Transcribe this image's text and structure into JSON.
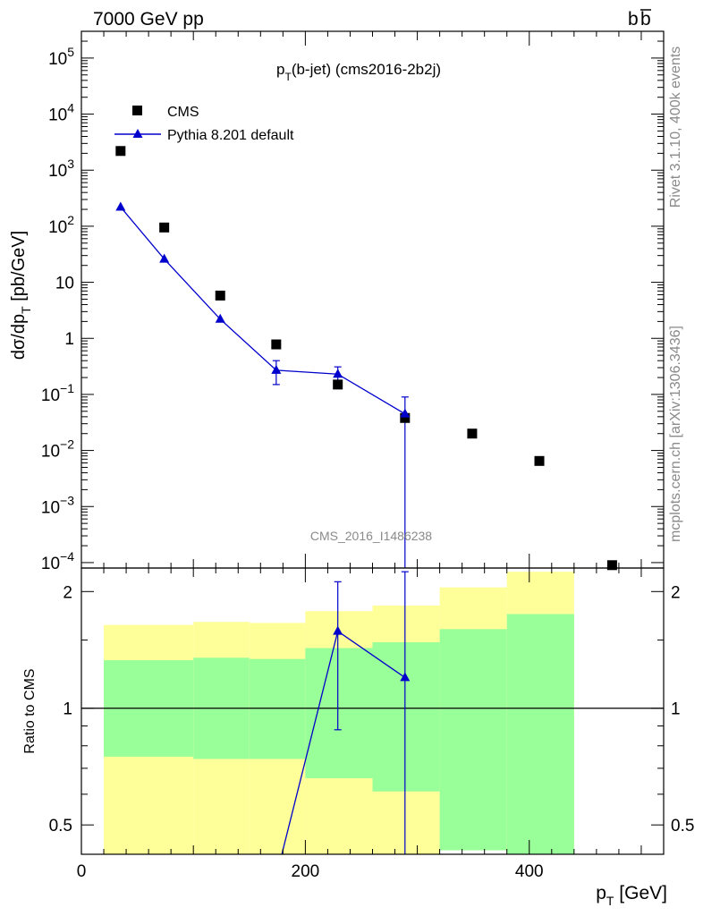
{
  "header": {
    "left": "7000 GeV pp",
    "right_b": "b",
    "right_bbar": "b"
  },
  "side_text": {
    "top": "Rivet 3.1.10,  400k events",
    "bottom": "mcplots.cern.ch [arXiv:1306.3436]"
  },
  "watermark": "CMS_2016_I1486238",
  "colors": {
    "mc": "#0000cc",
    "data": "#000000",
    "band_outer": "#ffff99",
    "band_inner": "#99ff99",
    "side_text": "#8a8a8a"
  },
  "chart_data": [
    {
      "type": "scatter",
      "title_main": "p",
      "title_sub": "T",
      "title_rest": "(b-jet) (cms2016-2b2j)",
      "ylabel_parts": [
        "dσ/dp",
        "T",
        " [pb/GeV]"
      ],
      "yscale": "log",
      "xlim": [
        0,
        520
      ],
      "ylim": [
        8e-05,
        300000.0
      ],
      "legend_placement": "top-left",
      "y_ticks": [
        {
          "v": 100000.0,
          "base": "10",
          "exp": "5"
        },
        {
          "v": 10000.0,
          "base": "10",
          "exp": "4"
        },
        {
          "v": 1000.0,
          "base": "10",
          "exp": "3"
        },
        {
          "v": 100.0,
          "base": "10",
          "exp": "2"
        },
        {
          "v": 10,
          "base": "10",
          "exp": ""
        },
        {
          "v": 1,
          "base": "1",
          "exp": ""
        },
        {
          "v": 0.1,
          "base": "10",
          "exp": "−1"
        },
        {
          "v": 0.01,
          "base": "10",
          "exp": "−2"
        },
        {
          "v": 0.001,
          "base": "10",
          "exp": "−3"
        },
        {
          "v": 0.0001,
          "base": "10",
          "exp": "−4"
        }
      ],
      "series": [
        {
          "name": "CMS",
          "marker": "square",
          "x": [
            35,
            74,
            124,
            174,
            229,
            289,
            349,
            409,
            474
          ],
          "y": [
            2200,
            95,
            5.8,
            0.78,
            0.15,
            0.038,
            0.02,
            0.0065,
            9e-05
          ]
        },
        {
          "name": "Pythia 8.201 default",
          "marker": "triangle",
          "x": [
            35,
            74,
            124,
            174,
            229,
            289
          ],
          "y": [
            220,
            26,
            2.2,
            0.27,
            0.23,
            0.045
          ],
          "yerr_low": [
            null,
            null,
            null,
            0.15,
            0.16,
            1e-05
          ],
          "yerr_high": [
            null,
            null,
            null,
            0.4,
            0.31,
            0.09
          ]
        }
      ]
    },
    {
      "type": "line",
      "ylabel": "Ratio to CMS",
      "xlabel_main": "p",
      "xlabel_sub": "T",
      "xlabel_rest": " [GeV]",
      "yscale": "log",
      "xlim": [
        0,
        520
      ],
      "ylim": [
        0.42,
        2.3
      ],
      "x_ticks": [
        0,
        200,
        400
      ],
      "y_ticks": [
        0.5,
        1,
        2
      ],
      "reference_line": 1,
      "bands": [
        {
          "x0": 20,
          "x1": 100,
          "outer": [
            0.39,
            1.64
          ],
          "inner": [
            0.75,
            1.33
          ]
        },
        {
          "x0": 100,
          "x1": 150,
          "outer": [
            0.38,
            1.67
          ],
          "inner": [
            0.74,
            1.35
          ]
        },
        {
          "x0": 150,
          "x1": 200,
          "outer": [
            0.38,
            1.66
          ],
          "inner": [
            0.74,
            1.34
          ]
        },
        {
          "x0": 200,
          "x1": 260,
          "outer": [
            0.39,
            1.78
          ],
          "inner": [
            0.66,
            1.43
          ]
        },
        {
          "x0": 260,
          "x1": 320,
          "outer": [
            0.39,
            1.84
          ],
          "inner": [
            0.61,
            1.48
          ]
        },
        {
          "x0": 320,
          "x1": 380,
          "outer": [
            0.43,
            2.05
          ],
          "inner": [
            0.43,
            1.6
          ]
        },
        {
          "x0": 380,
          "x1": 440,
          "outer": [
            0.42,
            2.25
          ],
          "inner": [
            0.42,
            1.75
          ]
        }
      ],
      "series": [
        {
          "name": "Pythia 8.201 default",
          "marker": "triangle",
          "x": [
            179,
            229,
            289
          ],
          "y": [
            0.42,
            1.58,
            1.2
          ],
          "show_marker": [
            false,
            true,
            true
          ],
          "yerr_low": [
            null,
            0.88,
            0.42
          ],
          "yerr_high": [
            null,
            2.12,
            2.25
          ]
        }
      ]
    }
  ]
}
